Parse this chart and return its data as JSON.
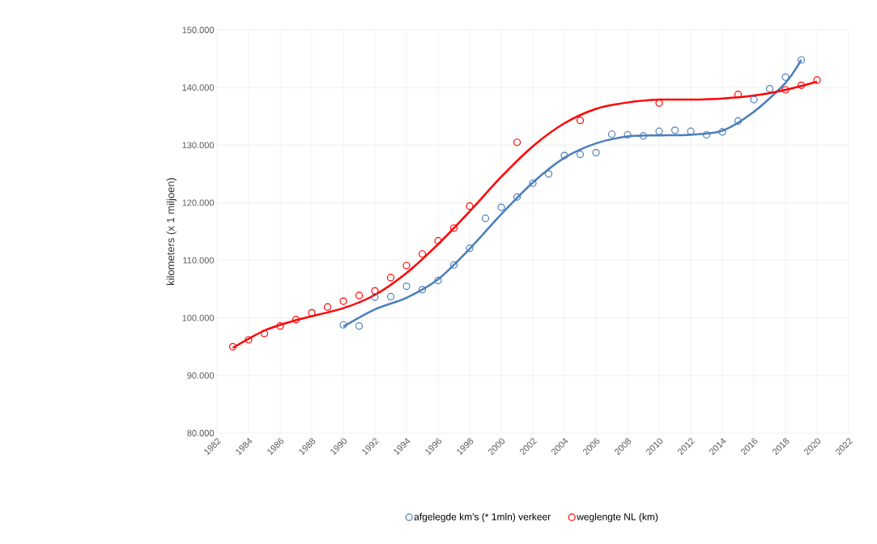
{
  "chart_data": {
    "type": "scatter",
    "ylabel": "kilometers (x 1 miljoen)",
    "xlim": [
      1982,
      2022
    ],
    "xticks": [
      1982,
      1984,
      1986,
      1988,
      1990,
      1992,
      1994,
      1996,
      1998,
      2000,
      2002,
      2004,
      2006,
      2008,
      2010,
      2012,
      2014,
      2016,
      2018,
      2020,
      2022
    ],
    "ylim": [
      80000,
      150000
    ],
    "yticks": [
      {
        "value": 80000,
        "label": "80.000"
      },
      {
        "value": 90000,
        "label": "90.000"
      },
      {
        "value": 100000,
        "label": "100.000"
      },
      {
        "value": 110000,
        "label": "110.000"
      },
      {
        "value": 120000,
        "label": "120.000"
      },
      {
        "value": 130000,
        "label": "130.000"
      },
      {
        "value": 140000,
        "label": "140.000"
      },
      {
        "value": 150000,
        "label": "150.000"
      }
    ],
    "grid": true,
    "legend": "bottom",
    "marker": "circle",
    "series": [
      {
        "name": "afgelegde km's (* 1mln) verkeer",
        "color": "#4a7ebb",
        "x": [
          1990,
          1991,
          1992,
          1993,
          1994,
          1995,
          1996,
          1997,
          1998,
          1999,
          2000,
          2001,
          2002,
          2003,
          2004,
          2005,
          2006,
          2007,
          2008,
          2009,
          2010,
          2011,
          2012,
          2013,
          2014,
          2015,
          2016,
          2017,
          2018,
          2019
        ],
        "values": [
          98800,
          98600,
          103600,
          103700,
          105500,
          104900,
          106500,
          109200,
          112100,
          117300,
          119200,
          121000,
          123400,
          125000,
          128200,
          128400,
          128700,
          131900,
          131800,
          131600,
          132400,
          132600,
          132400,
          131800,
          132300,
          134200,
          137900,
          139800,
          141800,
          144800
        ]
      },
      {
        "name": "weglengte NL (km)",
        "color": "#ff0000",
        "x": [
          1983,
          1984,
          1985,
          1986,
          1987,
          1988,
          1989,
          1990,
          1991,
          1992,
          1993,
          1994,
          1995,
          1996,
          1997,
          1998,
          2001,
          2005,
          2010,
          2015,
          2018,
          2019,
          2020
        ],
        "values": [
          95000,
          96200,
          97300,
          98600,
          99700,
          100900,
          101900,
          102900,
          103900,
          104700,
          107000,
          109100,
          111100,
          113400,
          115600,
          119400,
          130500,
          134300,
          137300,
          138800,
          139600,
          140400,
          141300
        ]
      },
      {
        "type": "line",
        "marker": "none",
        "color": "#4a7ebb",
        "x": [
          1990,
          1992,
          1994,
          1996,
          1998,
          2000,
          2002,
          2004,
          2006,
          2008,
          2010,
          2012,
          2014,
          2016,
          2018,
          2019
        ],
        "values": [
          98500,
          101500,
          103500,
          106700,
          112000,
          118000,
          123500,
          127800,
          130300,
          131500,
          131700,
          131800,
          132500,
          135800,
          140800,
          144800
        ]
      },
      {
        "type": "line",
        "marker": "none",
        "color": "#ff0000",
        "x": [
          1983,
          1985,
          1987,
          1990,
          1992,
          1994,
          1996,
          1998,
          2000,
          2002,
          2004,
          2006,
          2008,
          2010,
          2012,
          2014,
          2016,
          2018,
          2020
        ],
        "values": [
          94800,
          97800,
          99600,
          101700,
          104000,
          107800,
          112800,
          118500,
          124500,
          129800,
          133800,
          136300,
          137400,
          137900,
          137900,
          138100,
          138600,
          139600,
          141000
        ]
      }
    ]
  }
}
